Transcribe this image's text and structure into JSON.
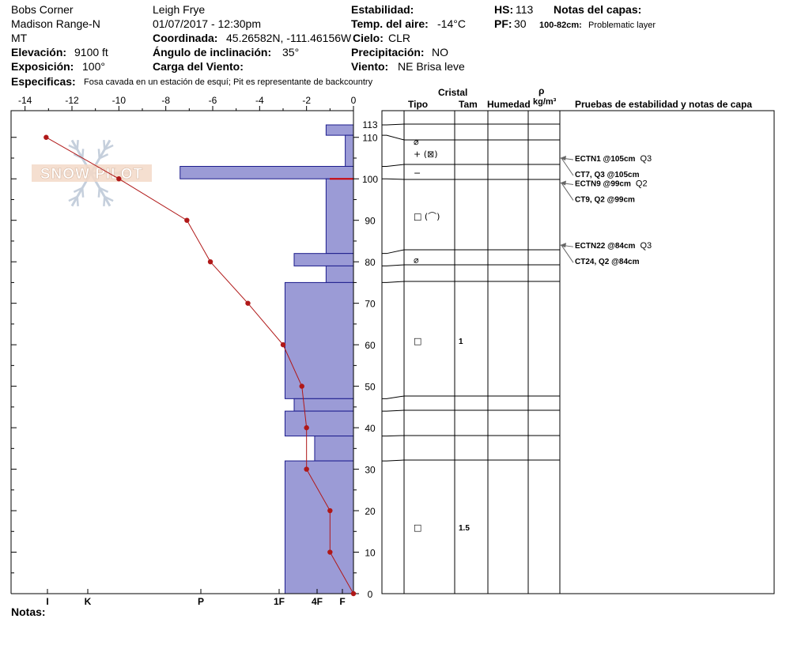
{
  "header": {
    "location": "Bobs Corner",
    "range": "Madison Range-N",
    "state": "MT",
    "elevation_label": "Elevación:",
    "elevation": "9100 ft",
    "exposure_label": "Exposición:",
    "exposure": "100°",
    "observer": "Leigh Frye",
    "datetime": "01/07/2017 - 12:30pm",
    "coord_label": "Coordinada:",
    "coords": "45.26582N, -111.46156W",
    "incline_label": "Ángulo de inclinación:",
    "incline": "35°",
    "wind_load_label": "Carga del Viento:",
    "wind_load": "",
    "stability_label": "Estabilidad:",
    "stability": "",
    "air_temp_label": "Temp. del aire:",
    "air_temp": "-14°C",
    "sky_label": "Cielo:",
    "sky": "CLR",
    "precip_label": "Precipitación:",
    "precip": "NO",
    "wind_label": "Viento:",
    "wind": "NE Brisa leve",
    "hs_label": "HS:",
    "hs": "113",
    "pf_label": "PF:",
    "pf": "30",
    "layer_notes_label": "Notas del capas:",
    "layer_note_range": "100-82cm:",
    "layer_note_text": "Problematic layer",
    "specifics_label": "Especificas:",
    "specifics": "Fosa cavada en un estación de esquí; Pit es representante de backcountry",
    "notes_label": "Notas:",
    "notes": ""
  },
  "logo": {
    "text": "SNOW PILOT"
  },
  "table_headers": {
    "crystal": "Cristal",
    "type": "Tipo",
    "size": "Tam",
    "moisture": "Humedad",
    "rho": "ρ",
    "density_unit": "kg/m³",
    "tests": "Pruebas de estabilidad y notas de capa"
  },
  "chart_data": {
    "type": "snow-profile",
    "temperature_axis": {
      "ticks": [
        -14,
        -12,
        -10,
        -8,
        -6,
        -4,
        -2,
        0
      ],
      "range": [
        -15,
        0
      ]
    },
    "depth_axis": {
      "ticks": [
        0,
        10,
        20,
        30,
        40,
        50,
        60,
        70,
        80,
        90,
        100,
        110,
        113
      ],
      "range": [
        0,
        113
      ]
    },
    "hardness_labels": [
      "I",
      "K",
      "P",
      "1F",
      "4F",
      "F"
    ],
    "hardness_layers": [
      {
        "bottom": 110.5,
        "top": 113,
        "value": 0.6
      },
      {
        "bottom": 103,
        "top": 110.5,
        "value": 0.18
      },
      {
        "bottom": 100,
        "top": 103,
        "value": 3.8
      },
      {
        "bottom": 82,
        "top": 100,
        "value": 0.6
      },
      {
        "bottom": 79,
        "top": 82,
        "value": 1.3
      },
      {
        "bottom": 75,
        "top": 79,
        "value": 0.6
      },
      {
        "bottom": 47,
        "top": 75,
        "value": 1.5
      },
      {
        "bottom": 44,
        "top": 47,
        "value": 1.3
      },
      {
        "bottom": 38,
        "top": 44,
        "value": 1.5
      },
      {
        "bottom": 32,
        "top": 38,
        "value": 0.85
      },
      {
        "bottom": 0,
        "top": 32,
        "value": 1.5
      }
    ],
    "temperature_profile": [
      {
        "depth": 110,
        "temp": -13.1
      },
      {
        "depth": 100,
        "temp": -10.0
      },
      {
        "depth": 90,
        "temp": -7.1
      },
      {
        "depth": 80,
        "temp": -6.1
      },
      {
        "depth": 70,
        "temp": -4.5
      },
      {
        "depth": 60,
        "temp": -3.0
      },
      {
        "depth": 50,
        "temp": -2.2
      },
      {
        "depth": 40,
        "temp": -2.0
      },
      {
        "depth": 30,
        "temp": -2.0
      },
      {
        "depth": 20,
        "temp": -1.0
      },
      {
        "depth": 10,
        "temp": -1.0
      },
      {
        "depth": 0,
        "temp": 0
      }
    ],
    "layer_boundaries": [
      113,
      110.5,
      103,
      100,
      82,
      79,
      75,
      47,
      44,
      38,
      32,
      0
    ],
    "layer_info": [
      {
        "depth": 109,
        "type": "⌀",
        "size": ""
      },
      {
        "depth": 106,
        "type": "+ (⊠)",
        "size": ""
      },
      {
        "depth": 101.5,
        "type": "−",
        "size": ""
      },
      {
        "depth": 91,
        "type": "□ (⌒)",
        "size": ""
      },
      {
        "depth": 80.5,
        "type": "⌀",
        "size": ""
      },
      {
        "depth": 61,
        "type": "□",
        "size": "1"
      },
      {
        "depth": 16,
        "type": "□",
        "size": "1.5"
      }
    ],
    "tests": [
      {
        "depth": 105,
        "lines": [
          {
            "bold": "ECTN1 @105cm",
            "extra": "Q3"
          },
          {
            "bold": "CT7, Q3 @105cm",
            "extra": ""
          }
        ]
      },
      {
        "depth": 99,
        "lines": [
          {
            "bold": "ECTN9 @99cm",
            "extra": "Q2"
          },
          {
            "bold": "CT9, Q2 @99cm",
            "extra": ""
          }
        ]
      },
      {
        "depth": 84,
        "lines": [
          {
            "bold": "ECTN22 @84cm",
            "extra": "Q3"
          },
          {
            "bold": "CT24, Q2 @84cm",
            "extra": ""
          }
        ]
      }
    ],
    "colors": {
      "hardness_fill": "#9b9bd6",
      "temp_line": "#b01818",
      "critical_layer": "#cc0000"
    }
  }
}
